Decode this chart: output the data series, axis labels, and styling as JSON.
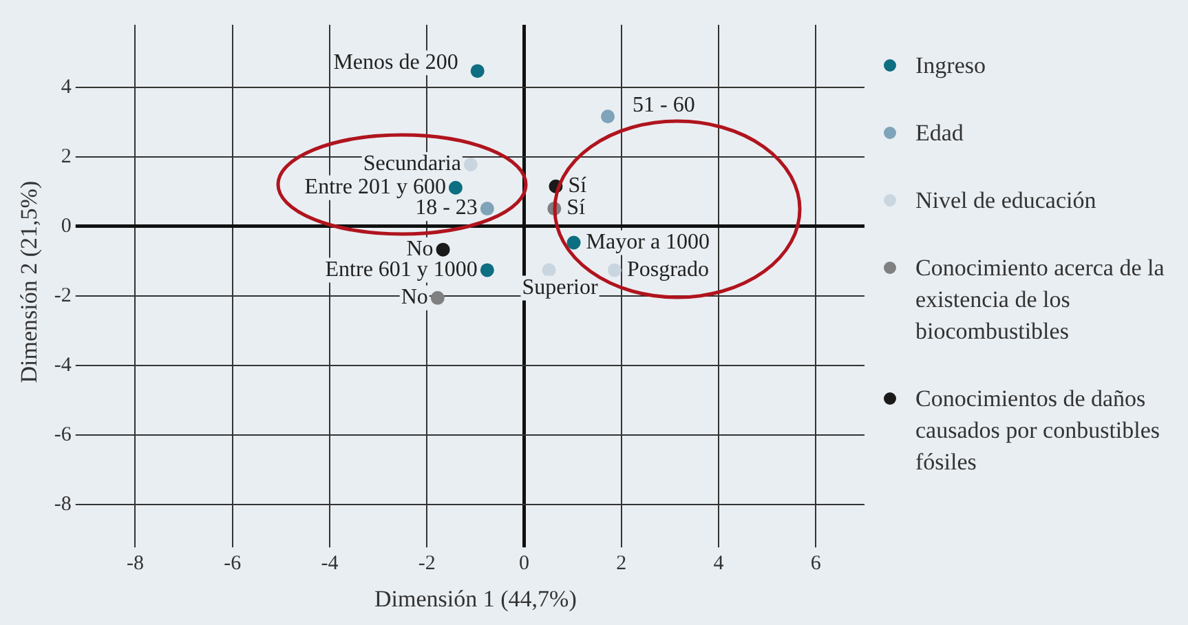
{
  "chart_data": {
    "type": "scatter",
    "xlabel": "Dimensión 1 (44,7%)",
    "ylabel": "Dimensión 2 (21,5%)",
    "xlim": [
      -9,
      7
    ],
    "xticks": [
      -8,
      -6,
      -4,
      -2,
      0,
      2,
      4,
      6
    ],
    "ylim": [
      -9,
      5.8
    ],
    "yticks": [
      -8,
      -6,
      -4,
      -2,
      0,
      2,
      4
    ],
    "grid": true,
    "legend": "right",
    "marker": "circle",
    "series": [
      {
        "name": "Ingreso",
        "color": "#0e6e82",
        "x": [
          -0.96,
          -1.41,
          -0.76,
          1.02
        ],
        "values": [
          4.47,
          1.11,
          -1.26,
          -0.47
        ]
      },
      {
        "name": "Edad",
        "color": "#7fa3b8",
        "x": [
          1.72,
          -0.76
        ],
        "values": [
          3.16,
          0.51
        ]
      },
      {
        "name": "Nivel de educación",
        "color": "#c9d6e0",
        "x": [
          -1.1,
          0.51,
          1.86
        ],
        "values": [
          1.78,
          -1.26,
          -1.26
        ]
      },
      {
        "name": "Conocimiento acerca de la existencia de los biocombustibles",
        "color": "#808080",
        "x": [
          0.62,
          -1.78
        ],
        "values": [
          0.51,
          -2.06
        ]
      },
      {
        "name": "Conocimientos de daños causados por conbustibles fósiles",
        "color": "#1a1a1a",
        "x": [
          0.65,
          -1.67
        ],
        "values": [
          1.15,
          -0.67
        ]
      }
    ],
    "annotations": [
      {
        "text": "Menos de 200",
        "x": -0.96,
        "y": 4.47
      },
      {
        "text": "Entre 201 y 600",
        "x": -1.41,
        "y": 1.11
      },
      {
        "text": "Entre 601 y 1000",
        "x": -0.76,
        "y": -1.26
      },
      {
        "text": "Mayor a 1000",
        "x": 1.02,
        "y": -0.47
      },
      {
        "text": "51 - 60",
        "x": 1.72,
        "y": 3.16
      },
      {
        "text": "18 - 23",
        "x": -0.76,
        "y": 0.51
      },
      {
        "text": "Secundaria",
        "x": -1.1,
        "y": 1.78
      },
      {
        "text": "Superior",
        "x": 0.51,
        "y": -1.26
      },
      {
        "text": "Posgrado",
        "x": 1.86,
        "y": -1.26
      },
      {
        "text": "Sí",
        "x": 0.62,
        "y": 0.51
      },
      {
        "text": "No",
        "x": -1.78,
        "y": -2.06
      },
      {
        "text": "Sí",
        "x": 0.65,
        "y": 1.15
      },
      {
        "text": "No",
        "x": -1.67,
        "y": -0.67
      }
    ]
  }
}
